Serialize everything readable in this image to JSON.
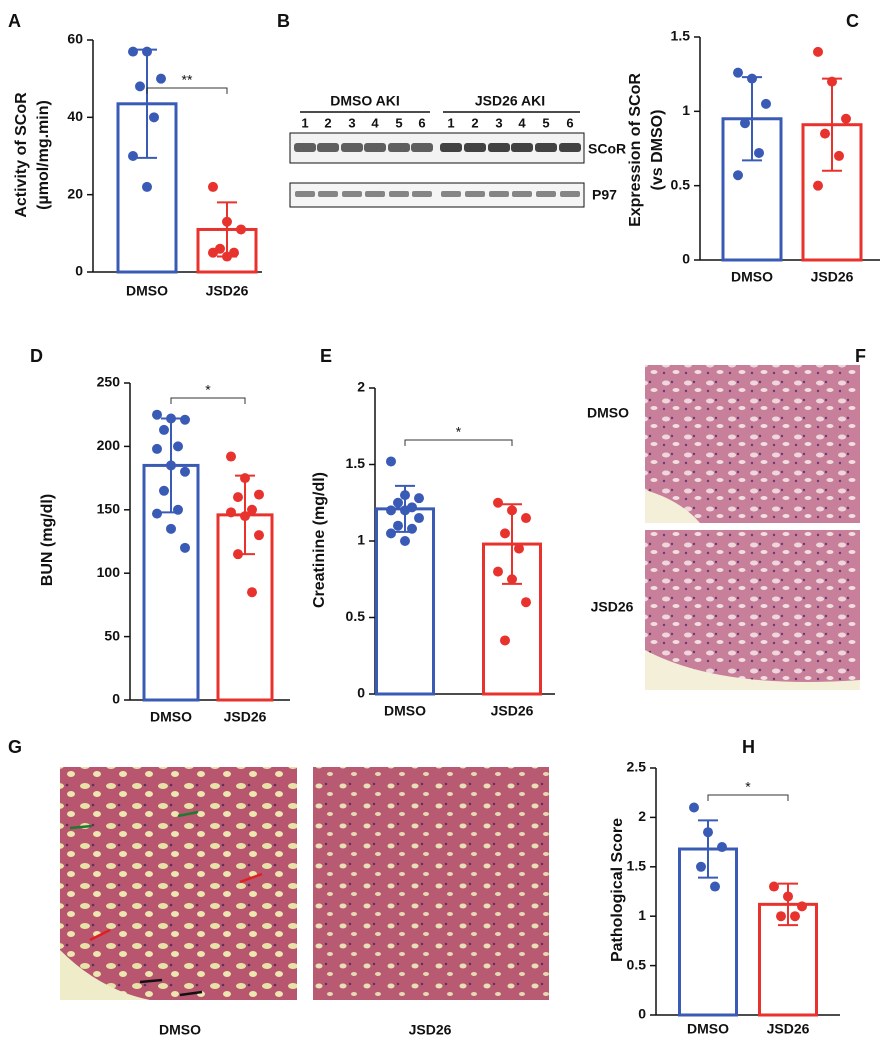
{
  "chart_data": [
    {
      "type": "bar",
      "panel_label": "A",
      "ylabel": [
        "Activity of SCoR",
        "(µmol/mg.min)"
      ],
      "categories": [
        "DMSO",
        "JSD26"
      ],
      "values": [
        43.5,
        11
      ],
      "errors": [
        14,
        7
      ],
      "points": [
        [
          57,
          57,
          50,
          48,
          40,
          30,
          22
        ],
        [
          22,
          13,
          11,
          6,
          5,
          5,
          4
        ]
      ],
      "colors": [
        "#3a5bb5",
        "#e8322e"
      ],
      "ylim": [
        0,
        60
      ],
      "yticks": [
        0,
        20,
        40,
        60
      ],
      "annotation": "**"
    },
    {
      "type": "bar",
      "panel_label": "C",
      "ylabel": [
        "Expression of SCoR",
        "(vs DMSO)"
      ],
      "categories": [
        "DMSO",
        "JSD26"
      ],
      "values": [
        0.95,
        0.91
      ],
      "errors": [
        0.28,
        0.31
      ],
      "points": [
        [
          1.26,
          1.22,
          1.05,
          0.92,
          0.72,
          0.57
        ],
        [
          1.4,
          1.2,
          0.95,
          0.85,
          0.7,
          0.5
        ]
      ],
      "colors": [
        "#3a5bb5",
        "#e8322e"
      ],
      "ylim": [
        0,
        1.5
      ],
      "yticks": [
        0,
        0.5,
        1,
        1.5
      ]
    },
    {
      "type": "bar",
      "panel_label": "D",
      "ylabel": [
        "BUN (mg/dl)"
      ],
      "categories": [
        "DMSO",
        "JSD26"
      ],
      "values": [
        185,
        146
      ],
      "errors": [
        37,
        31
      ],
      "points": [
        [
          225,
          222,
          221,
          213,
          200,
          198,
          185,
          180,
          165,
          150,
          147,
          135,
          120
        ],
        [
          192,
          175,
          162,
          160,
          150,
          148,
          145,
          130,
          115,
          85
        ]
      ],
      "colors": [
        "#3a5bb5",
        "#e8322e"
      ],
      "ylim": [
        0,
        250
      ],
      "yticks": [
        0,
        50,
        100,
        150,
        200,
        250
      ],
      "annotation": "*"
    },
    {
      "type": "bar",
      "panel_label": "E",
      "ylabel": [
        "Creatinine (mg/dl)"
      ],
      "categories": [
        "DMSO",
        "JSD26"
      ],
      "values": [
        1.21,
        0.98
      ],
      "errors": [
        0.15,
        0.26
      ],
      "points": [
        [
          1.52,
          1.3,
          1.28,
          1.25,
          1.22,
          1.2,
          1.2,
          1.15,
          1.1,
          1.08,
          1.05,
          1.0
        ],
        [
          1.25,
          1.2,
          1.15,
          1.05,
          0.95,
          0.8,
          0.75,
          0.6,
          0.35
        ]
      ],
      "colors": [
        "#3a5bb5",
        "#e8322e"
      ],
      "ylim": [
        0,
        2
      ],
      "yticks": [
        0,
        0.5,
        1,
        1.5,
        2
      ],
      "annotation": "*"
    },
    {
      "type": "bar",
      "panel_label": "H",
      "ylabel": [
        "Pathological  Score"
      ],
      "categories": [
        "DMSO",
        "JSD26"
      ],
      "values": [
        1.68,
        1.12
      ],
      "errors": [
        0.29,
        0.21
      ],
      "points": [
        [
          2.1,
          1.85,
          1.7,
          1.5,
          1.3
        ],
        [
          1.3,
          1.2,
          1.1,
          1.0,
          1.0
        ]
      ],
      "colors": [
        "#3a5bb5",
        "#e8322e"
      ],
      "ylim": [
        0,
        2.5
      ],
      "yticks": [
        0,
        0.5,
        1,
        1.5,
        2,
        2.5
      ],
      "annotation": "*"
    }
  ],
  "blot": {
    "panel_label": "B",
    "groups": [
      "DMSO AKI",
      "JSD26 AKI"
    ],
    "lanes": [
      "1",
      "2",
      "3",
      "4",
      "5",
      "6",
      "1",
      "2",
      "3",
      "4",
      "5",
      "6"
    ],
    "bands": [
      "SCoR",
      "P97"
    ]
  },
  "histology_f": {
    "panel_label": "F",
    "rows": [
      "DMSO",
      "JSD26"
    ]
  },
  "histology_g": {
    "panel_label": "G",
    "captions": [
      "DMSO",
      "JSD26"
    ]
  }
}
